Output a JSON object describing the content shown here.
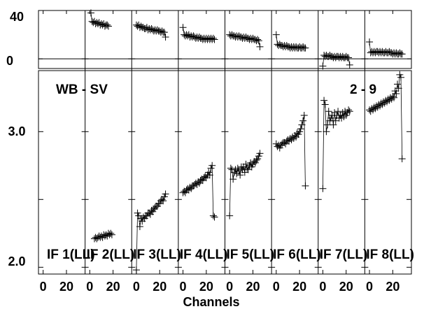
{
  "chart_data": {
    "type": "scatter",
    "xlabel": "Channels",
    "source_label": "WB - SV",
    "baseline_label": "2 - 9",
    "panel_labels": [
      "IF 1(LL)",
      "IF 2(LL)",
      "IF 3(LL)",
      "IF 4(LL)",
      "IF 5(LL)",
      "IF 6(LL)",
      "IF 7(LL)",
      "IF 8(LL)"
    ],
    "x_tick_labels": [
      [
        "0",
        "20"
      ],
      [
        "0",
        "20"
      ],
      [
        "0",
        "20"
      ],
      [
        "0",
        "20"
      ],
      [
        "0",
        "20"
      ],
      [
        "0",
        "20"
      ],
      [
        "0",
        "20"
      ],
      [
        "0",
        "20"
      ]
    ],
    "x_ticks": [
      0,
      20
    ],
    "xlim": [
      -4,
      36
    ],
    "phase": {
      "ylim": [
        -8,
        40
      ],
      "yticks": [
        0,
        40
      ],
      "ytick_labels": [
        "0",
        "40"
      ],
      "zero_line": true
    },
    "amplitude": {
      "ylim": [
        1.95,
        3.45
      ],
      "yticks": [
        2.0,
        2.5,
        3.0
      ],
      "ytick_labels": [
        "2.0",
        "",
        "3.0"
      ]
    },
    "panels": [
      {
        "amp": [],
        "phase": []
      },
      {
        "amp": [
          2.21,
          2.22,
          2.21,
          2.22,
          2.23,
          2.22,
          2.23,
          2.22,
          2.24,
          2.23,
          2.24,
          2.23,
          2.25,
          2.24,
          2.25,
          2.24
        ],
        "phase": [
          38,
          31,
          30,
          31,
          29,
          30,
          29,
          30,
          28,
          29,
          28,
          29,
          27,
          28,
          28,
          27
        ],
        "amp_start_channel": 4,
        "phase_start_channel": 1
      },
      {
        "amp": [
          1.98,
          2.4,
          2.38,
          2.3,
          2.36,
          2.34,
          2.37,
          2.36,
          2.38,
          2.38,
          2.4,
          2.4,
          2.39,
          2.42,
          2.41,
          2.43,
          2.44,
          2.45,
          2.45,
          2.47,
          2.47,
          2.49,
          2.5,
          2.49,
          2.52,
          2.54
        ],
        "phase": [
          28,
          27,
          28,
          26,
          27,
          26,
          26,
          25,
          25,
          26,
          24,
          25,
          24,
          25,
          24,
          23,
          24,
          23,
          24,
          23,
          23,
          22,
          23,
          22,
          22,
          18
        ]
      },
      {
        "amp": [
          2.55,
          2.56,
          2.55,
          2.57,
          2.58,
          2.57,
          2.59,
          2.58,
          2.6,
          2.6,
          2.61,
          2.62,
          2.61,
          2.63,
          2.62,
          2.64,
          2.65,
          2.64,
          2.66,
          2.67,
          2.66,
          2.68,
          2.7,
          2.68,
          2.73,
          2.75,
          2.38,
          2.37
        ],
        "phase": [
          26,
          20,
          19,
          20,
          19,
          20,
          18,
          19,
          18,
          19,
          18,
          17,
          18,
          17,
          18,
          17,
          17,
          16,
          17,
          16,
          17,
          16,
          17,
          16,
          17,
          16,
          17,
          16
        ]
      },
      {
        "amp": [
          2.38,
          2.73,
          2.72,
          2.65,
          2.7,
          2.72,
          2.69,
          2.73,
          2.71,
          2.68,
          2.74,
          2.72,
          2.74,
          2.7,
          2.76,
          2.73,
          2.72,
          2.75,
          2.77,
          2.74,
          2.76,
          2.78,
          2.77,
          2.79,
          2.8,
          2.82,
          2.84
        ],
        "phase": [
          20,
          19,
          20,
          19,
          19,
          18,
          19,
          18,
          19,
          18,
          18,
          17,
          18,
          17,
          18,
          17,
          17,
          16,
          17,
          16,
          17,
          16,
          16,
          15,
          16,
          15,
          10
        ]
      },
      {
        "amp": [
          2.91,
          2.89,
          2.9,
          2.88,
          2.9,
          2.91,
          2.92,
          2.92,
          2.91,
          2.93,
          2.94,
          2.93,
          2.95,
          2.94,
          2.96,
          2.95,
          2.97,
          2.96,
          2.99,
          2.98,
          3.0,
          3.02,
          3.05,
          3.08,
          3.12,
          2.6
        ],
        "phase": [
          20,
          12,
          11,
          12,
          11,
          11,
          10,
          11,
          10,
          11,
          10,
          10,
          9,
          10,
          9,
          10,
          9,
          10,
          9,
          9,
          10,
          9,
          9,
          10,
          9,
          9
        ]
      },
      {
        "amp": [
          2.58,
          3.23,
          3.2,
          3.0,
          3.05,
          3.15,
          3.08,
          3.1,
          3.12,
          3.05,
          3.14,
          3.08,
          3.12,
          3.15,
          3.1,
          3.12,
          3.1,
          3.14,
          3.11,
          3.15,
          3.12,
          3.14,
          3.16,
          3.15
        ],
        "phase": [
          -6,
          3,
          2,
          3,
          2,
          2,
          3,
          2,
          2,
          1,
          2,
          1,
          2,
          2,
          1,
          2,
          1,
          2,
          1,
          1,
          2,
          1,
          1,
          -5
        ]
      },
      {
        "amp": [
          3.16,
          3.15,
          3.17,
          3.16,
          3.18,
          3.17,
          3.19,
          3.18,
          3.2,
          3.19,
          3.21,
          3.2,
          3.22,
          3.21,
          3.23,
          3.22,
          3.24,
          3.23,
          3.25,
          3.24,
          3.26,
          3.25,
          3.3,
          3.28,
          3.35,
          3.32,
          3.42,
          3.4,
          2.8
        ],
        "phase": [
          14,
          5,
          6,
          5,
          6,
          5,
          6,
          6,
          5,
          6,
          5,
          6,
          5,
          5,
          6,
          5,
          5,
          6,
          5,
          5,
          4,
          5,
          4,
          5,
          4,
          4,
          5,
          4,
          4
        ]
      }
    ]
  }
}
